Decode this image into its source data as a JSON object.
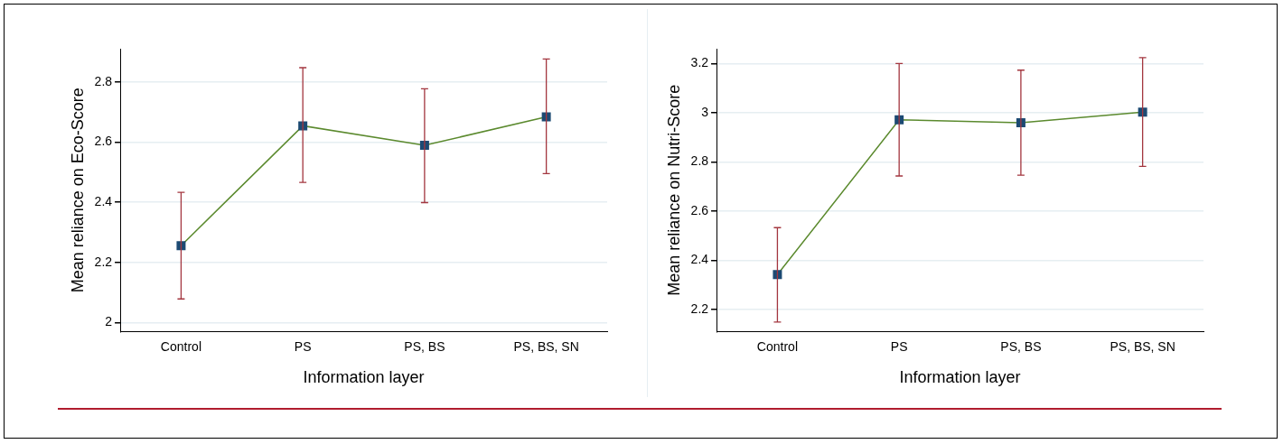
{
  "chart_data": [
    {
      "type": "line",
      "categories": [
        "Control",
        "PS",
        "PS, BS",
        "PS, BS, SN"
      ],
      "xlabel": "Information layer",
      "ylabel": "Mean reliance on Eco-Score",
      "ylim": [
        1.97,
        2.91
      ],
      "yticks": [
        2,
        2.2,
        2.4,
        2.6,
        2.8
      ],
      "grid": "y",
      "marker": "square",
      "line_style": "solid",
      "series": [
        {
          "color": "#5b8a2e",
          "values": [
            2.256,
            2.654,
            2.589,
            2.684
          ],
          "errors": [
            [
              2.079,
              2.433
            ],
            [
              2.466,
              2.847
            ],
            [
              2.399,
              2.777
            ],
            [
              2.495,
              2.876
            ]
          ]
        }
      ]
    },
    {
      "type": "line",
      "categories": [
        "Control",
        "PS",
        "PS, BS",
        "PS, BS, SN"
      ],
      "xlabel": "Information layer",
      "ylabel": "Mean reliance on Nutri-Score",
      "ylim": [
        2.11,
        3.26
      ],
      "yticks": [
        2.2,
        2.4,
        2.6,
        2.8,
        3,
        3.2
      ],
      "grid": "y",
      "marker": "square",
      "line_style": "solid",
      "series": [
        {
          "color": "#5b8a2e",
          "values": [
            2.342,
            2.971,
            2.959,
            3.002
          ],
          "errors": [
            [
              2.149,
              2.533
            ],
            [
              2.743,
              3.2
            ],
            [
              2.746,
              3.173
            ],
            [
              2.782,
              3.224
            ]
          ]
        }
      ]
    }
  ]
}
